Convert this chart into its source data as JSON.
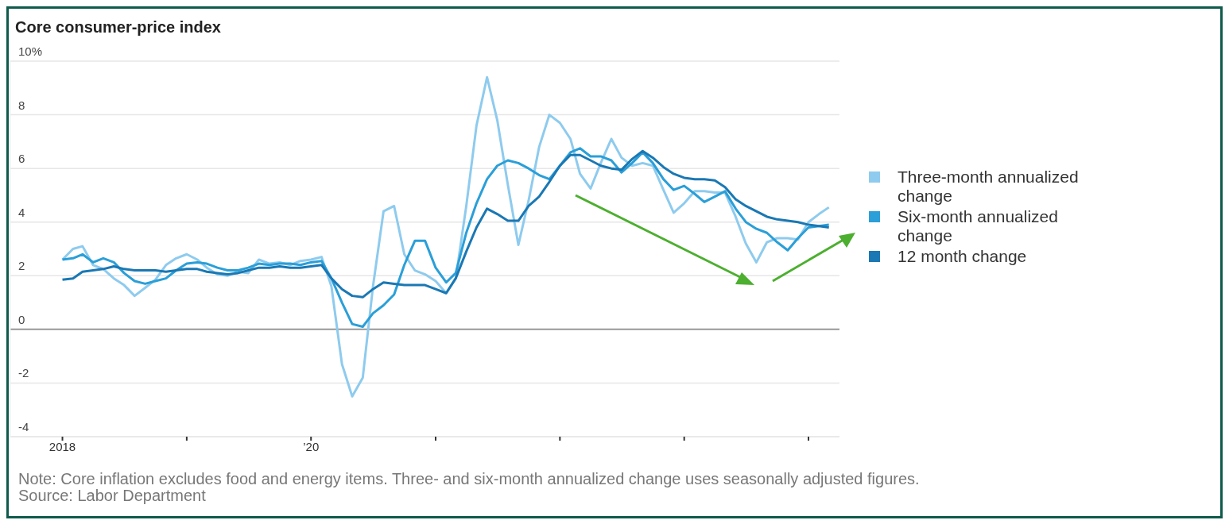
{
  "chart_data": {
    "type": "line",
    "title": "Core consumer-price index",
    "annotations": [
      "Note: Core inflation excludes food and energy items. Three- and six-month annualized change uses seasonally adjusted figures.",
      "Source: Labor Department"
    ],
    "x": [
      "2018-01",
      "2018-02",
      "2018-03",
      "2018-04",
      "2018-05",
      "2018-06",
      "2018-07",
      "2018-08",
      "2018-09",
      "2018-10",
      "2018-11",
      "2018-12",
      "2019-01",
      "2019-02",
      "2019-03",
      "2019-04",
      "2019-05",
      "2019-06",
      "2019-07",
      "2019-08",
      "2019-09",
      "2019-10",
      "2019-11",
      "2019-12",
      "2020-01",
      "2020-02",
      "2020-03",
      "2020-04",
      "2020-05",
      "2020-06",
      "2020-07",
      "2020-08",
      "2020-09",
      "2020-10",
      "2020-11",
      "2020-12",
      "2021-01",
      "2021-02",
      "2021-03",
      "2021-04",
      "2021-05",
      "2021-06",
      "2021-07",
      "2021-08",
      "2021-09",
      "2021-10",
      "2021-11",
      "2021-12",
      "2022-01",
      "2022-02",
      "2022-03",
      "2022-04",
      "2022-05",
      "2022-06",
      "2022-07",
      "2022-08",
      "2022-09",
      "2022-10",
      "2022-11",
      "2022-12",
      "2023-01",
      "2023-02",
      "2023-03",
      "2023-04",
      "2023-05",
      "2023-06",
      "2023-07",
      "2023-08",
      "2023-09",
      "2023-10",
      "2023-11",
      "2023-12",
      "2024-01",
      "2024-02",
      "2024-03"
    ],
    "series": [
      {
        "name": "Three-month annualized change",
        "color": "#8ecbee",
        "values": [
          2.6,
          3.0,
          3.1,
          2.4,
          2.25,
          1.9,
          1.65,
          1.25,
          1.55,
          1.85,
          2.4,
          2.65,
          2.8,
          2.6,
          2.3,
          2.05,
          2.0,
          2.15,
          2.1,
          2.6,
          2.45,
          2.5,
          2.4,
          2.55,
          2.6,
          2.7,
          1.6,
          -1.3,
          -2.5,
          -1.8,
          1.6,
          4.4,
          4.6,
          2.8,
          2.2,
          2.05,
          1.8,
          1.35,
          1.9,
          4.6,
          7.6,
          9.4,
          7.8,
          5.4,
          3.15,
          4.8,
          6.8,
          8.0,
          7.7,
          7.1,
          5.8,
          5.25,
          6.2,
          7.1,
          6.4,
          6.1,
          6.2,
          6.1,
          5.2,
          4.35,
          4.7,
          5.15,
          5.15,
          5.1,
          5.1,
          4.2,
          3.2,
          2.5,
          3.25,
          3.4,
          3.4,
          3.35,
          4.0,
          4.3,
          4.55
        ]
      },
      {
        "name": "Six-month annualized change",
        "color": "#2a9fd8",
        "values": [
          2.6,
          2.65,
          2.8,
          2.5,
          2.65,
          2.5,
          2.1,
          1.8,
          1.7,
          1.8,
          1.9,
          2.2,
          2.45,
          2.5,
          2.45,
          2.3,
          2.2,
          2.2,
          2.3,
          2.45,
          2.4,
          2.45,
          2.45,
          2.4,
          2.5,
          2.55,
          1.9,
          1.0,
          0.2,
          0.1,
          0.6,
          0.9,
          1.3,
          2.4,
          3.3,
          3.3,
          2.3,
          1.75,
          2.1,
          3.6,
          4.7,
          5.6,
          6.1,
          6.3,
          6.2,
          6.0,
          5.75,
          5.6,
          6.1,
          6.6,
          6.75,
          6.45,
          6.45,
          6.3,
          5.85,
          6.2,
          6.6,
          6.2,
          5.6,
          5.2,
          5.35,
          5.05,
          4.75,
          4.95,
          5.15,
          4.5,
          4.0,
          3.75,
          3.6,
          3.25,
          2.95,
          3.4,
          3.8,
          3.85,
          3.9
        ]
      },
      {
        "name": "12 month change",
        "color": "#1a78b4",
        "values": [
          1.85,
          1.9,
          2.15,
          2.2,
          2.25,
          2.35,
          2.25,
          2.2,
          2.2,
          2.2,
          2.15,
          2.2,
          2.25,
          2.25,
          2.15,
          2.1,
          2.05,
          2.1,
          2.2,
          2.3,
          2.3,
          2.35,
          2.3,
          2.3,
          2.35,
          2.4,
          1.9,
          1.5,
          1.25,
          1.2,
          1.5,
          1.75,
          1.7,
          1.65,
          1.65,
          1.65,
          1.5,
          1.35,
          1.9,
          2.9,
          3.8,
          4.5,
          4.3,
          4.05,
          4.05,
          4.6,
          4.95,
          5.5,
          6.1,
          6.5,
          6.5,
          6.3,
          6.1,
          6.0,
          5.95,
          6.35,
          6.65,
          6.4,
          6.05,
          5.8,
          5.65,
          5.6,
          5.6,
          5.55,
          5.3,
          4.85,
          4.6,
          4.4,
          4.2,
          4.1,
          4.05,
          4.0,
          3.9,
          3.85,
          3.8
        ]
      }
    ],
    "xlim": [
      "2017-08",
      "2024-04"
    ],
    "xticks": [
      {
        "value": "2018-01",
        "label": "2018"
      },
      {
        "value": "2019-01",
        "label": null
      },
      {
        "value": "2020-01",
        "label": "’20"
      },
      {
        "value": "2021-01",
        "label": null
      },
      {
        "value": "2022-01",
        "label": null
      },
      {
        "value": "2023-01",
        "label": null
      },
      {
        "value": "2024-01",
        "label": null
      }
    ],
    "ylim": [
      -4,
      10
    ],
    "yticks": [
      -4,
      -2,
      0,
      2,
      4,
      6,
      8,
      {
        "value": 10,
        "label": "10%"
      }
    ],
    "ref_lines": [
      {
        "axis": "y",
        "value": 0,
        "color": "#999999"
      }
    ],
    "grid": "y",
    "legend": "right",
    "marker": "none",
    "line_style": "solid"
  }
}
